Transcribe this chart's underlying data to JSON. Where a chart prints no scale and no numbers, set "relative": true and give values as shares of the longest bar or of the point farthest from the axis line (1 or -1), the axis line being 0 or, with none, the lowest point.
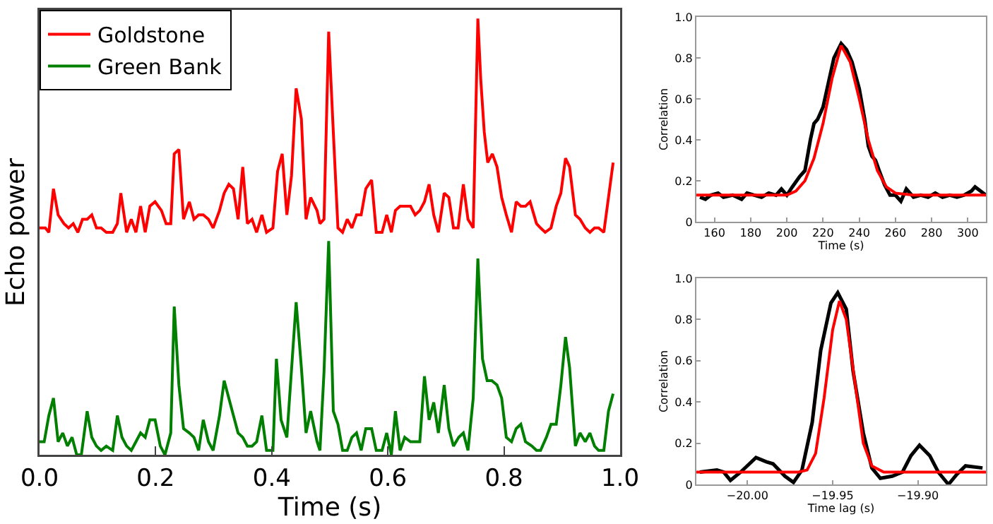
{
  "chart_data": [
    {
      "type": "line",
      "relative": true,
      "xlabel": "Time (s)",
      "ylabel": "Echo power",
      "legend": "top left",
      "grid": false,
      "xlim": [
        0,
        1
      ],
      "xticks": [
        {
          "value": 0,
          "label": "0.0"
        },
        {
          "value": 0.2,
          "label": "0.2"
        },
        {
          "value": 0.4,
          "label": "0.4"
        },
        {
          "value": 0.6,
          "label": "0.6"
        },
        {
          "value": 0.8,
          "label": "0.8"
        },
        {
          "value": 1,
          "label": "1.0"
        }
      ],
      "series": [
        {
          "name": "Goldstone",
          "color": "#ff0000",
          "x": [
            0,
            0.01,
            0.016,
            0.024,
            0.032,
            0.042,
            0.05,
            0.058,
            0.066,
            0.074,
            0.082,
            0.09,
            0.098,
            0.106,
            0.115,
            0.126,
            0.134,
            0.14,
            0.15,
            0.158,
            0.166,
            0.174,
            0.182,
            0.19,
            0.199,
            0.21,
            0.218,
            0.226,
            0.232,
            0.24,
            0.248,
            0.258,
            0.266,
            0.274,
            0.282,
            0.291,
            0.299,
            0.31,
            0.318,
            0.326,
            0.334,
            0.342,
            0.35,
            0.358,
            0.366,
            0.374,
            0.383,
            0.391,
            0.402,
            0.41,
            0.418,
            0.426,
            0.434,
            0.442,
            0.451,
            0.459,
            0.467,
            0.478,
            0.483,
            0.49,
            0.498,
            0.506,
            0.514,
            0.522,
            0.53,
            0.538,
            0.546,
            0.554,
            0.562,
            0.572,
            0.58,
            0.59,
            0.598,
            0.606,
            0.613,
            0.621,
            0.629,
            0.639,
            0.647,
            0.655,
            0.663,
            0.671,
            0.679,
            0.687,
            0.697,
            0.705,
            0.713,
            0.721,
            0.73,
            0.738,
            0.747,
            0.755,
            0.76,
            0.766,
            0.772,
            0.78,
            0.788,
            0.796,
            0.804,
            0.813,
            0.821,
            0.829,
            0.837,
            0.845,
            0.856,
            0.863,
            0.871,
            0.881,
            0.89,
            0.898,
            0.906,
            0.913,
            0.923,
            0.931,
            0.94,
            0.948,
            0.956,
            0.963,
            0.972,
            0.988
          ],
          "values": [
            0.52,
            0.52,
            0.51,
            0.61,
            0.55,
            0.53,
            0.52,
            0.53,
            0.51,
            0.54,
            0.54,
            0.55,
            0.52,
            0.52,
            0.51,
            0.51,
            0.53,
            0.6,
            0.51,
            0.54,
            0.51,
            0.57,
            0.51,
            0.57,
            0.58,
            0.56,
            0.53,
            0.53,
            0.69,
            0.7,
            0.54,
            0.58,
            0.54,
            0.55,
            0.55,
            0.54,
            0.52,
            0.56,
            0.6,
            0.62,
            0.61,
            0.54,
            0.66,
            0.53,
            0.54,
            0.51,
            0.55,
            0.51,
            0.52,
            0.65,
            0.69,
            0.55,
            0.64,
            0.84,
            0.77,
            0.54,
            0.59,
            0.56,
            0.53,
            0.54,
            0.97,
            0.74,
            0.52,
            0.51,
            0.54,
            0.52,
            0.55,
            0.55,
            0.61,
            0.63,
            0.51,
            0.51,
            0.55,
            0.51,
            0.56,
            0.57,
            0.57,
            0.57,
            0.55,
            0.56,
            0.58,
            0.62,
            0.55,
            0.51,
            0.6,
            0.59,
            0.52,
            0.52,
            0.62,
            0.54,
            0.52,
            1.0,
            0.86,
            0.74,
            0.67,
            0.69,
            0.66,
            0.59,
            0.55,
            0.51,
            0.58,
            0.57,
            0.57,
            0.58,
            0.53,
            0.52,
            0.51,
            0.52,
            0.57,
            0.6,
            0.68,
            0.66,
            0.55,
            0.54,
            0.52,
            0.51,
            0.52,
            0.52,
            0.51,
            0.67
          ]
        },
        {
          "name": "Green Bank",
          "color": "#007f00",
          "x": [
            0,
            0.008,
            0.016,
            0.024,
            0.032,
            0.04,
            0.048,
            0.056,
            0.064,
            0.072,
            0.082,
            0.09,
            0.098,
            0.106,
            0.115,
            0.126,
            0.134,
            0.142,
            0.15,
            0.158,
            0.166,
            0.174,
            0.182,
            0.19,
            0.199,
            0.208,
            0.216,
            0.226,
            0.232,
            0.24,
            0.248,
            0.258,
            0.266,
            0.274,
            0.282,
            0.291,
            0.299,
            0.31,
            0.318,
            0.326,
            0.334,
            0.342,
            0.35,
            0.358,
            0.366,
            0.374,
            0.383,
            0.391,
            0.402,
            0.408,
            0.416,
            0.426,
            0.442,
            0.451,
            0.459,
            0.467,
            0.478,
            0.483,
            0.49,
            0.498,
            0.506,
            0.514,
            0.522,
            0.53,
            0.538,
            0.546,
            0.554,
            0.562,
            0.572,
            0.58,
            0.59,
            0.598,
            0.606,
            0.613,
            0.621,
            0.629,
            0.639,
            0.647,
            0.655,
            0.663,
            0.671,
            0.679,
            0.687,
            0.697,
            0.705,
            0.713,
            0.722,
            0.73,
            0.738,
            0.747,
            0.755,
            0.763,
            0.771,
            0.779,
            0.788,
            0.796,
            0.804,
            0.813,
            0.821,
            0.829,
            0.837,
            0.848,
            0.856,
            0.863,
            0.873,
            0.881,
            0.89,
            0.898,
            0.906,
            0.913,
            0.923,
            0.931,
            0.94,
            0.948,
            0.956,
            0.963,
            0.972,
            0.98,
            0.988
          ],
          "values": [
            0.03,
            0.03,
            0.09,
            0.13,
            0.03,
            0.05,
            0.02,
            0.04,
            0,
            0,
            0.1,
            0.04,
            0.02,
            0.01,
            0.02,
            0.01,
            0.09,
            0.04,
            0.02,
            0.01,
            0.03,
            0.05,
            0.04,
            0.08,
            0.08,
            0.02,
            0,
            0.05,
            0.34,
            0.16,
            0.06,
            0.05,
            0.04,
            0.01,
            0.08,
            0.03,
            0.01,
            0.09,
            0.17,
            0.13,
            0.09,
            0.05,
            0.04,
            0.02,
            0.02,
            0.03,
            0.09,
            0.01,
            0.01,
            0.22,
            0.08,
            0.04,
            0.35,
            0.2,
            0.05,
            0.1,
            0.03,
            0.01,
            0.19,
            0.49,
            0.1,
            0.07,
            0.01,
            0.01,
            0.04,
            0.05,
            0.01,
            0.06,
            0.06,
            0.01,
            0.01,
            0.05,
            0,
            0.1,
            0.01,
            0.04,
            0.03,
            0.03,
            0.03,
            0.18,
            0.08,
            0.12,
            0.05,
            0.16,
            0.06,
            0.02,
            0.04,
            0.05,
            0.01,
            0.13,
            0.45,
            0.22,
            0.17,
            0.17,
            0.16,
            0.13,
            0.04,
            0.03,
            0.06,
            0.07,
            0.03,
            0.02,
            0.01,
            0.01,
            0.04,
            0.07,
            0.07,
            0.16,
            0.27,
            0.2,
            0.02,
            0.05,
            0.03,
            0.05,
            0.02,
            0.01,
            0.01,
            0.1,
            0.14
          ]
        }
      ]
    },
    {
      "type": "line",
      "xlabel": "Time (s)",
      "ylabel": "Correlation",
      "legend": false,
      "grid": false,
      "xlim": [
        150,
        310
      ],
      "xticks": [
        160,
        180,
        200,
        220,
        240,
        260,
        280,
        300
      ],
      "ylim": [
        0,
        1
      ],
      "yticks": [
        0,
        {
          "value": 0.2,
          "label": "0.2"
        },
        {
          "value": 0.4,
          "label": "0.4"
        },
        {
          "value": 0.6,
          "label": "0.6"
        },
        {
          "value": 0.8,
          "label": "0.8"
        },
        {
          "value": 1,
          "label": "1.0"
        }
      ],
      "series": [
        {
          "color": "#000000",
          "x": [
            152,
            155,
            158,
            162,
            165,
            170,
            175,
            178,
            182,
            186,
            190,
            194,
            197,
            200,
            203,
            207,
            210,
            213,
            215,
            217,
            220,
            223,
            226,
            230,
            233,
            236,
            240,
            243,
            245,
            247,
            249,
            251,
            254,
            257,
            260,
            263,
            266,
            270,
            274,
            278,
            282,
            286,
            290,
            294,
            298,
            302,
            304,
            307,
            310
          ],
          "values": [
            0.12,
            0.11,
            0.13,
            0.14,
            0.12,
            0.13,
            0.11,
            0.14,
            0.13,
            0.12,
            0.14,
            0.13,
            0.16,
            0.13,
            0.17,
            0.22,
            0.25,
            0.4,
            0.48,
            0.5,
            0.56,
            0.68,
            0.8,
            0.87,
            0.84,
            0.78,
            0.65,
            0.5,
            0.37,
            0.32,
            0.3,
            0.25,
            0.18,
            0.13,
            0.13,
            0.1,
            0.16,
            0.12,
            0.13,
            0.12,
            0.14,
            0.12,
            0.13,
            0.12,
            0.13,
            0.15,
            0.17,
            0.15,
            0.13
          ]
        },
        {
          "color": "#ff0000",
          "x": [
            150,
            200,
            205,
            210,
            215,
            220,
            225,
            230,
            235,
            240,
            245,
            250,
            255,
            260,
            270,
            310
          ],
          "values": [
            0.13,
            0.13,
            0.15,
            0.2,
            0.31,
            0.48,
            0.7,
            0.86,
            0.78,
            0.6,
            0.4,
            0.25,
            0.17,
            0.14,
            0.13,
            0.13
          ]
        }
      ]
    },
    {
      "type": "line",
      "xlabel": "Time lag (s)",
      "ylabel": "Correlation",
      "legend": false,
      "grid": false,
      "xlim": [
        -20.03,
        -19.86
      ],
      "xticks": [
        {
          "value": -20,
          "label": "−20.00"
        },
        {
          "value": -19.95,
          "label": "−19.95"
        },
        {
          "value": -19.9,
          "label": "−19.90"
        }
      ],
      "ylim": [
        0,
        1
      ],
      "yticks": [
        0,
        {
          "value": 0.2,
          "label": "0.2"
        },
        {
          "value": 0.4,
          "label": "0.4"
        },
        {
          "value": 0.6,
          "label": "0.6"
        },
        {
          "value": 0.8,
          "label": "0.8"
        },
        {
          "value": 1,
          "label": "1.0"
        }
      ],
      "series": [
        {
          "color": "#000000",
          "x": [
            -20.028,
            -20.018,
            -20.014,
            -20.01,
            -20.004,
            -19.995,
            -19.989,
            -19.985,
            -19.978,
            -19.973,
            -19.968,
            -19.962,
            -19.957,
            -19.951,
            -19.947,
            -19.942,
            -19.938,
            -19.932,
            -19.927,
            -19.922,
            -19.915,
            -19.909,
            -19.904,
            -19.899,
            -19.893,
            -19.888,
            -19.882,
            -19.877,
            -19.872,
            -19.862
          ],
          "values": [
            0.06,
            0.07,
            0.06,
            0.02,
            0.06,
            0.13,
            0.11,
            0.1,
            0.04,
            0.01,
            0.07,
            0.3,
            0.65,
            0.88,
            0.93,
            0.85,
            0.55,
            0.25,
            0.08,
            0.03,
            0.04,
            0.06,
            0.14,
            0.19,
            0.14,
            0.06,
            0,
            0.05,
            0.09,
            0.08
          ]
        },
        {
          "color": "#ff0000",
          "x": [
            -20.03,
            -19.97,
            -19.965,
            -19.96,
            -19.955,
            -19.95,
            -19.946,
            -19.942,
            -19.937,
            -19.932,
            -19.927,
            -19.92,
            -19.86
          ],
          "values": [
            0.06,
            0.06,
            0.07,
            0.15,
            0.42,
            0.75,
            0.89,
            0.8,
            0.5,
            0.2,
            0.09,
            0.06,
            0.06
          ]
        }
      ]
    }
  ]
}
